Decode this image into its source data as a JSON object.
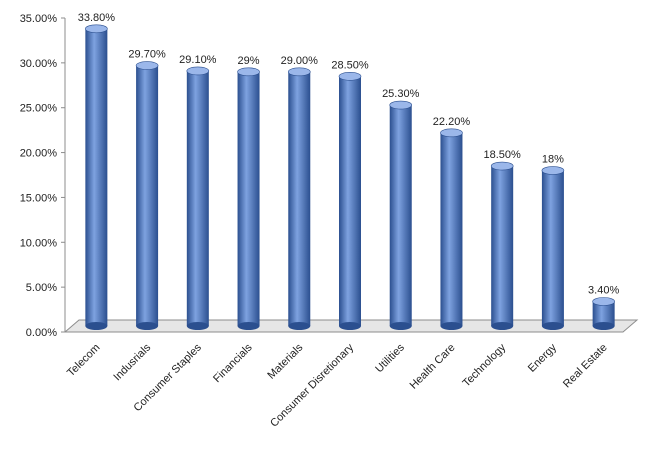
{
  "chart_data": {
    "type": "bar",
    "title": "",
    "xlabel": "",
    "ylabel": "",
    "categories": [
      "Telecom",
      "Indusrials",
      "Consumer Staples",
      "Financials",
      "Materials",
      "Consumer Disretionary",
      "Utilities",
      "Health Care",
      "Technology",
      "Energy",
      "Real Estate"
    ],
    "values": [
      33.8,
      29.7,
      29.1,
      29.0,
      29.0,
      28.5,
      25.3,
      22.2,
      18.5,
      18.0,
      3.4
    ],
    "data_labels": [
      "33.80%",
      "29.70%",
      "29.10%",
      "29%",
      "29.00%",
      "28.50%",
      "25.30%",
      "22.20%",
      "18.50%",
      "18%",
      "3.40%"
    ],
    "ylim": [
      0,
      35
    ],
    "yticks": [
      0,
      5,
      10,
      15,
      20,
      25,
      30,
      35
    ],
    "ytick_labels": [
      "0.00%",
      "5.00%",
      "10.00%",
      "15.00%",
      "20.00%",
      "25.00%",
      "30.00%",
      "35.00%"
    ],
    "grid": false,
    "legend": "none",
    "colors": {
      "bar": "#4472C4",
      "bar_dark": "#2B4F8F",
      "bar_light": "#7EA2E0",
      "bar_top": "#9BB7EA",
      "axis": "#8C8C8C",
      "floor": "#E6E6E6",
      "text": "#222222"
    }
  }
}
